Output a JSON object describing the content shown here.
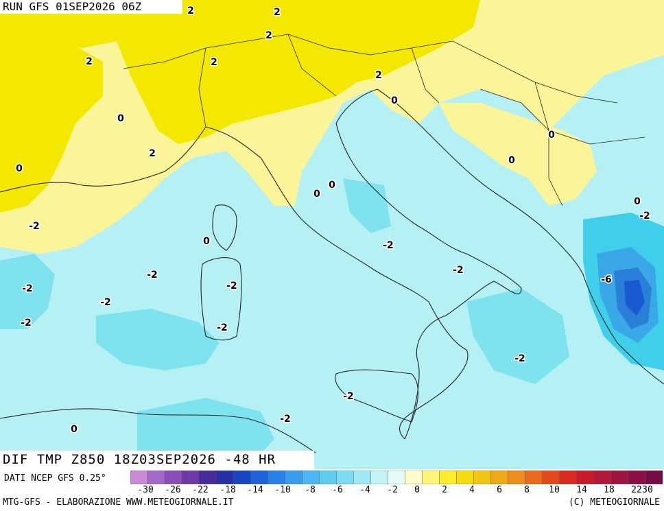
{
  "header": {
    "run_title": "RUN GFS 01SEP2026 06Z"
  },
  "field_title": "DIF TMP Z850 18Z03SEP2026 -48 HR",
  "source": "DATI NCEP GFS 0.25°",
  "footer": {
    "left": "MTG-GFS - ELABORAZIONE WWW.METEOGIORNALE.IT",
    "right": "(C) METEOGIORNALE"
  },
  "colorbar": {
    "colors": [
      "#c98ad6",
      "#a468c8",
      "#8a4fb8",
      "#6e3aa8",
      "#4a2b9c",
      "#2a2fa6",
      "#1a45c4",
      "#1f62dc",
      "#2b7fe8",
      "#3b9cef",
      "#4cb6f2",
      "#5fcdf2",
      "#7ddcf2",
      "#9fe8f4",
      "#c4f4f6",
      "#e6fbf8",
      "#fffbcb",
      "#fff57a",
      "#fcec2a",
      "#f4dc10",
      "#f2c412",
      "#f0aa18",
      "#ee8c1c",
      "#ea6a1c",
      "#e44a1c",
      "#dc2a22",
      "#c81c2c",
      "#b41838",
      "#a01440",
      "#8c1044",
      "#780c46"
    ],
    "tick_labels": [
      "-30",
      "-26",
      "-22",
      "-18",
      "-14",
      "-10",
      "-8",
      "-6",
      "-4",
      "-2",
      "0",
      "2",
      "4",
      "6",
      "8",
      "10",
      "14",
      "18",
      "22",
      "30"
    ]
  },
  "map": {
    "colors": {
      "warm2": "#f5e800",
      "warm1": "#fbf59a",
      "neutral": "#ffffd8",
      "cool0": "#dff8f8",
      "cool1": "#b4f0f4",
      "cool2": "#7fe2ef",
      "cool3": "#3fcfea",
      "cool4": "#3aa8e6",
      "cool5": "#2a7fd8",
      "cool6": "#1a5ad0",
      "sea": "#c8f2f6",
      "coast": "#222222"
    },
    "contour_labels": [
      "2",
      "2",
      "2",
      "2",
      "2",
      "2",
      "0",
      "0",
      "2",
      "0",
      "0",
      "0",
      "0",
      "0",
      "0",
      "-2",
      "0",
      "-2",
      "-2",
      "-2",
      "-6",
      "-2",
      "-2",
      "-2",
      "-2",
      "-2",
      "-2",
      "-2",
      "-2",
      "-2",
      "0"
    ]
  }
}
